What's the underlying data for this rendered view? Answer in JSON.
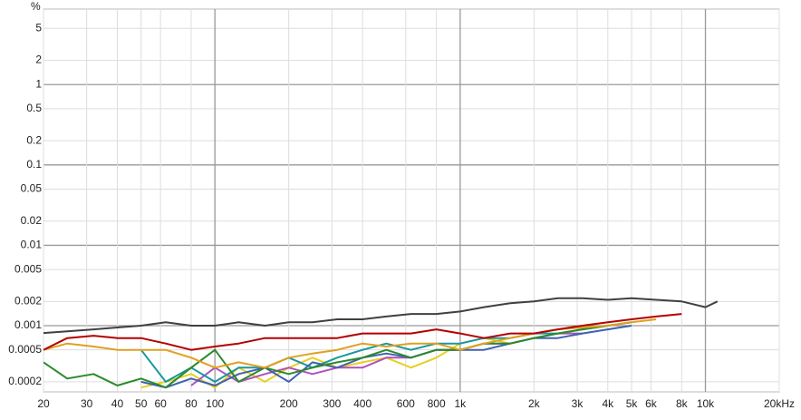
{
  "chart_data": {
    "type": "line",
    "y_label": "%",
    "xscale": "log",
    "yscale": "log",
    "grid": true,
    "xlim": [
      20,
      20000
    ],
    "ylim": [
      0.00015,
      8.7
    ],
    "xticks": [
      20,
      30,
      40,
      50,
      60,
      80,
      100,
      200,
      300,
      400,
      600,
      800,
      {
        "value": 1000,
        "label": "1k"
      },
      {
        "value": 2000,
        "label": "2k"
      },
      {
        "value": 3000,
        "label": "3k"
      },
      {
        "value": 4000,
        "label": "4k"
      },
      {
        "value": 5000,
        "label": "5k"
      },
      {
        "value": 6000,
        "label": "6k"
      },
      {
        "value": 8000,
        "label": "8k"
      },
      {
        "value": 10000,
        "label": "10k"
      },
      {
        "value": 20000,
        "label": "20kHz"
      }
    ],
    "yticks": [
      0.0002,
      0.0005,
      0.001,
      0.002,
      0.005,
      0.01,
      0.02,
      0.05,
      0.1,
      0.2,
      0.5,
      1,
      2,
      5
    ],
    "x": [
      20,
      25,
      32,
      40,
      50,
      63,
      80,
      100,
      125,
      160,
      200,
      250,
      315,
      400,
      500,
      630,
      800,
      1000,
      1250,
      1600,
      2000,
      2500,
      3150,
      4000,
      5000,
      6300,
      8000,
      10000,
      11200
    ],
    "series": [
      {
        "color": "#404040",
        "values": [
          0.00081,
          0.00085,
          0.0009,
          0.00095,
          0.001,
          0.0011,
          0.001,
          0.001,
          0.0011,
          0.001,
          0.0011,
          0.0011,
          0.0012,
          0.0012,
          0.0013,
          0.0014,
          0.0014,
          0.0015,
          0.0017,
          0.0019,
          0.002,
          0.0022,
          0.0022,
          0.0021,
          0.0022,
          0.0021,
          0.002,
          0.0017,
          0.002
        ]
      },
      {
        "color": "#b40000",
        "values": [
          0.0005,
          0.0007,
          0.00075,
          0.0007,
          0.0007,
          0.0006,
          0.0005,
          0.00055,
          0.0006,
          0.0007,
          0.0007,
          0.0007,
          0.0007,
          0.0008,
          0.0008,
          0.0008,
          0.0009,
          0.0008,
          0.0007,
          0.0008,
          0.0008,
          0.0009,
          0.001,
          0.0011,
          0.0012,
          0.0013,
          0.0014,
          null,
          null
        ]
      },
      {
        "color": "#e0a020",
        "values": [
          0.0005,
          0.0006,
          0.00055,
          0.0005,
          0.0005,
          0.0005,
          0.0004,
          0.0003,
          0.00035,
          0.0003,
          0.0004,
          0.00045,
          0.0005,
          0.0006,
          0.00055,
          0.0006,
          0.0006,
          0.0005,
          0.0006,
          0.0007,
          0.0008,
          0.0009,
          0.00095,
          0.001,
          0.0011,
          0.0012,
          null,
          null,
          null
        ]
      },
      {
        "color": "#2a8a2a",
        "values": [
          0.00035,
          0.00022,
          0.00025,
          0.00018,
          0.00022,
          0.00017,
          0.0003,
          0.0005,
          0.0002,
          0.0003,
          0.00025,
          0.0003,
          0.00035,
          0.0004,
          0.0005,
          0.0004,
          0.0005,
          0.0005,
          0.0006,
          0.0006,
          0.0007,
          0.0008,
          0.0009,
          0.001,
          0.0011,
          null,
          null,
          null,
          null
        ]
      },
      {
        "color": "#4060b0",
        "values": [
          null,
          null,
          0.00016,
          null,
          0.0002,
          0.00017,
          0.00022,
          0.00018,
          0.00025,
          0.0003,
          0.0002,
          0.00035,
          0.0003,
          0.0004,
          0.00045,
          0.0004,
          0.0005,
          0.0005,
          0.0005,
          0.0006,
          0.0007,
          0.0007,
          0.0008,
          0.0009,
          0.001,
          null,
          null,
          null,
          null
        ]
      },
      {
        "color": "#1898a0",
        "values": [
          null,
          null,
          null,
          null,
          0.0005,
          0.0002,
          0.0003,
          0.0002,
          0.0003,
          0.0003,
          0.0004,
          0.0003,
          0.0004,
          0.0005,
          0.0006,
          0.0005,
          0.0006,
          0.0006,
          0.0007,
          0.0007,
          0.0008,
          0.0008,
          0.0009,
          0.001,
          null,
          null,
          null,
          null,
          null
        ]
      },
      {
        "color": "#b050c0",
        "values": [
          null,
          null,
          null,
          null,
          null,
          null,
          0.00018,
          0.0003,
          0.0002,
          0.00025,
          0.0003,
          0.00025,
          0.0003,
          0.0003,
          0.0004,
          0.0004,
          0.0005,
          0.0005,
          0.0006,
          0.0006,
          0.0007,
          0.0008,
          0.0008,
          null,
          null,
          null,
          null,
          null,
          null
        ]
      },
      {
        "color": "#e8d020",
        "values": [
          null,
          null,
          null,
          null,
          0.00017,
          0.0002,
          0.00025,
          0.00017,
          0.0003,
          0.0002,
          0.0003,
          0.0004,
          0.0003,
          0.00035,
          0.0004,
          0.0003,
          0.0004,
          0.0006,
          0.0007,
          0.0006,
          0.0007,
          0.0008,
          0.0009,
          0.001,
          0.0011,
          null,
          null,
          null,
          null
        ]
      }
    ]
  }
}
